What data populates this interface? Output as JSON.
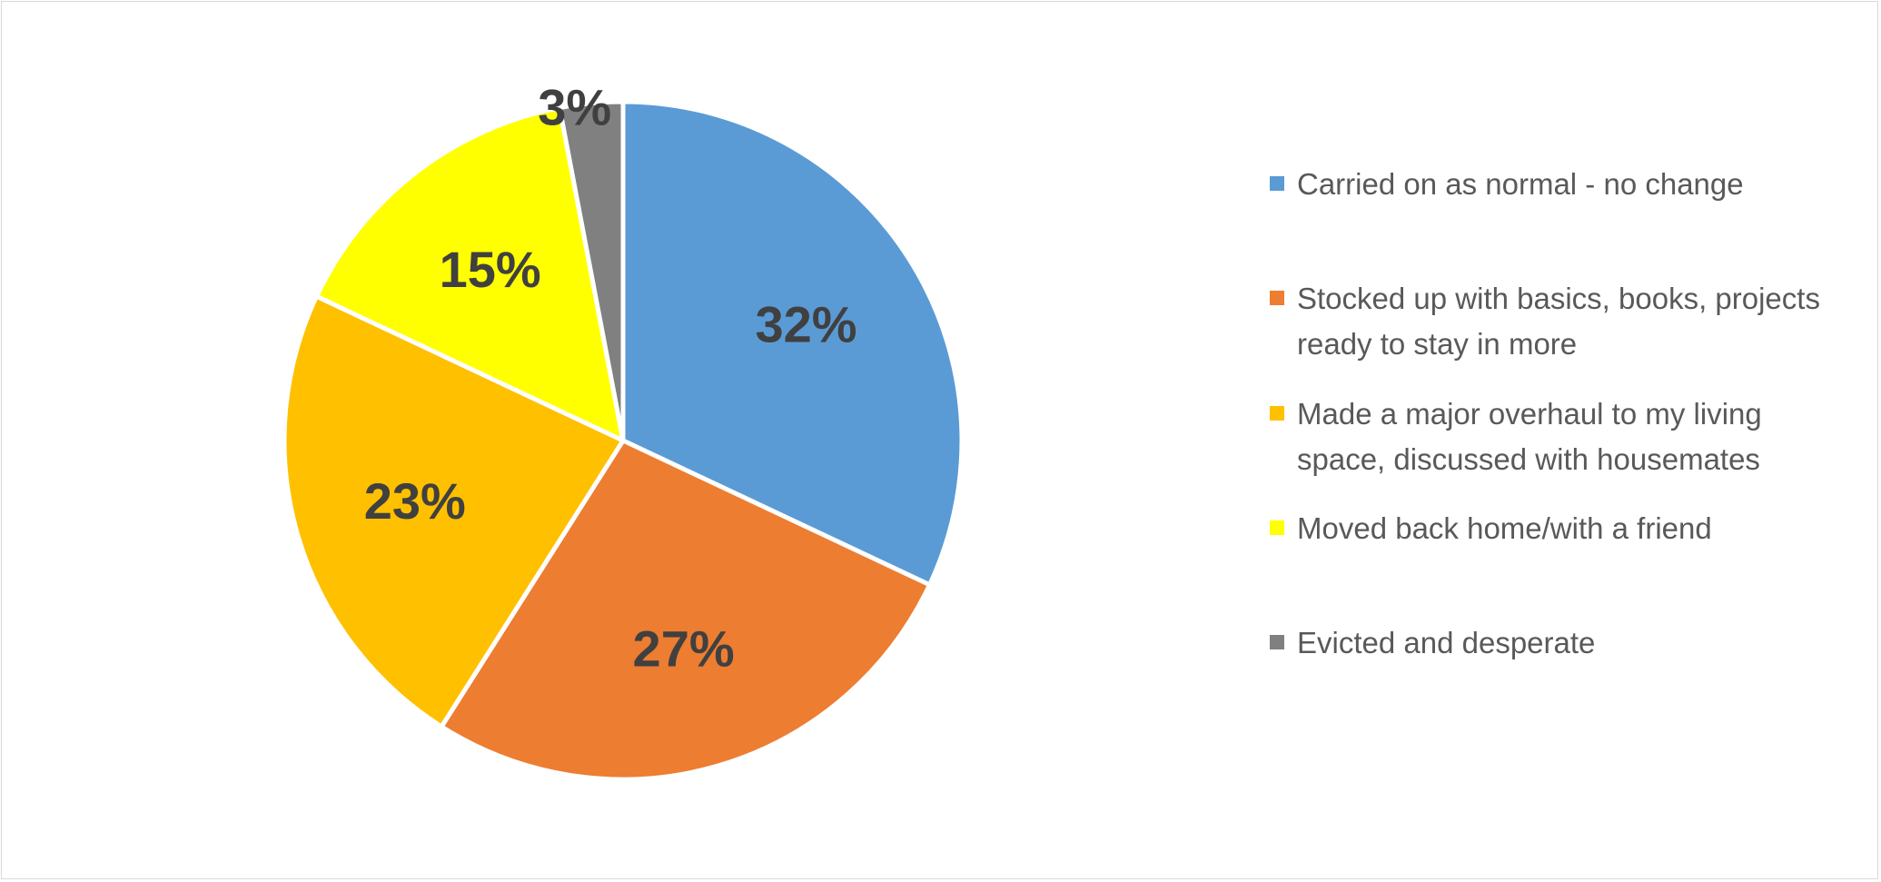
{
  "chart_data": {
    "type": "pie",
    "title": "",
    "legend_position": "right",
    "slices": [
      {
        "label": "Carried on as normal - no change",
        "value": 32,
        "value_label": "32%",
        "color": "#5B9BD5"
      },
      {
        "label": "Stocked up with basics, books, projects ready to stay in more",
        "value": 27,
        "value_label": "27%",
        "color": "#ED7D31"
      },
      {
        "label": "Made a major overhaul to my living space, discussed with housemates",
        "value": 23,
        "value_label": "23%",
        "color": "#FFC000"
      },
      {
        "label": "Moved back home/with a friend",
        "value": 15,
        "value_label": "15%",
        "color": "#FFFF00"
      },
      {
        "label": "Evicted and desperate",
        "value": 3,
        "value_label": "3%",
        "color": "#808080"
      }
    ]
  }
}
